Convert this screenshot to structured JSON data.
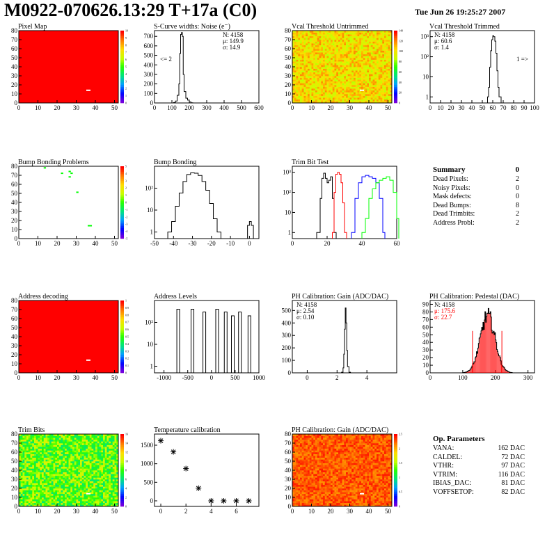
{
  "header": {
    "title": "M0922-070626.13:29 T+17a (C0)",
    "date": "Tue Jun 26 19:25:27 2007"
  },
  "colors": {
    "red": "#ff0000",
    "green": "#00ff00",
    "blue": "#0000ff",
    "marker": "#ffffff"
  },
  "summary": {
    "title": "Summary",
    "value": "0",
    "rows": [
      {
        "label": "Dead Pixels:",
        "value": "2"
      },
      {
        "label": "Noisy Pixels:",
        "value": "0"
      },
      {
        "label": "Mask defects:",
        "value": "0"
      },
      {
        "label": "Dead Bumps:",
        "value": "8"
      },
      {
        "label": "Dead Trimbits:",
        "value": "2"
      },
      {
        "label": "Address Probl:",
        "value": "2"
      }
    ]
  },
  "op_params": {
    "title": "Op. Parameters",
    "rows": [
      {
        "label": "VANA:",
        "value": "162 DAC"
      },
      {
        "label": "CALDEL:",
        "value": "72 DAC"
      },
      {
        "label": "VTHR:",
        "value": "97 DAC"
      },
      {
        "label": "VTRIM:",
        "value": "116 DAC"
      },
      {
        "label": "IBIAS_DAC:",
        "value": "81 DAC"
      },
      {
        "label": "VOFFSETOP:",
        "value": "82 DAC"
      }
    ]
  },
  "chart_data": [
    {
      "id": "pixel-map",
      "type": "heatmap",
      "title": "Pixel Map",
      "xlim": [
        0,
        52
      ],
      "ylim": [
        0,
        80
      ],
      "xticks": [
        0,
        10,
        20,
        30,
        40,
        50
      ],
      "yticks": [
        0,
        10,
        20,
        30,
        40,
        50,
        60,
        70,
        80
      ],
      "ztick_labels": [
        "0",
        "1",
        "2",
        "3",
        "4",
        "5",
        "6",
        "7",
        "8",
        "9",
        "10"
      ],
      "fill": "uniform",
      "fill_value": 10,
      "marked_pixels": [
        [
          36,
          14
        ]
      ]
    },
    {
      "id": "noise",
      "type": "line",
      "title": "S-Curve widths: Noise (e⁻)",
      "xlim": [
        0,
        600
      ],
      "ylim": [
        0,
        760
      ],
      "xticks": [
        0,
        100,
        200,
        300,
        400,
        500,
        600
      ],
      "yticks": [
        0,
        100,
        200,
        300,
        400,
        500,
        600,
        700
      ],
      "stats": [
        "N: 4158",
        "μ: 149.9",
        "σ: 14.9"
      ],
      "overflow_label": "<= 2",
      "x": [
        100,
        110,
        120,
        130,
        140,
        145,
        150,
        155,
        160,
        165,
        170,
        180,
        190,
        200,
        210,
        220
      ],
      "y": [
        0,
        5,
        20,
        80,
        200,
        520,
        720,
        740,
        700,
        300,
        120,
        50,
        30,
        10,
        2,
        0
      ]
    },
    {
      "id": "vcal-untrimmed",
      "type": "heatmap",
      "title": "Vcal Threshold Untrimmed",
      "xlim": [
        0,
        52
      ],
      "ylim": [
        0,
        80
      ],
      "xticks": [
        0,
        10,
        20,
        30,
        40,
        50
      ],
      "yticks": [
        0,
        10,
        20,
        30,
        40,
        50,
        60,
        70,
        80
      ],
      "ztick_labels": [
        "0",
        "20",
        "40",
        "60",
        "80",
        "100",
        "120",
        "140"
      ],
      "fill": "noise",
      "fill_range": [
        85,
        120
      ],
      "marked_pixels": [
        [
          36,
          14
        ]
      ]
    },
    {
      "id": "vcal-trimmed",
      "type": "line",
      "title": "Vcal Threshold Trimmed",
      "xlim": [
        0,
        100
      ],
      "ylim": [
        0.5,
        2000
      ],
      "log_y": true,
      "xticks": [
        0,
        10,
        20,
        30,
        40,
        50,
        60,
        70,
        80,
        90,
        100
      ],
      "yticks": [
        1,
        10,
        100,
        1000
      ],
      "ytick_labels": [
        "1",
        "10",
        "10²",
        "10³"
      ],
      "stats": [
        "N: 4158",
        "μ: 60.6",
        "σ: 1.4"
      ],
      "overflow_label": "1 =>",
      "x": [
        55,
        56,
        57,
        58,
        59,
        60,
        61,
        62,
        63,
        64,
        65,
        66
      ],
      "y": [
        1,
        3,
        30,
        200,
        700,
        1100,
        1000,
        600,
        150,
        20,
        3,
        1
      ]
    },
    {
      "id": "bump-bonding-problems",
      "type": "heatmap",
      "title": "Bump Bonding Problems",
      "xlim": [
        0,
        52
      ],
      "ylim": [
        0,
        80
      ],
      "xticks": [
        0,
        10,
        20,
        30,
        40,
        50
      ],
      "yticks": [
        0,
        10,
        20,
        30,
        40,
        50,
        60,
        70,
        80
      ],
      "ztick_labels": [
        "-5",
        "-4",
        "-3",
        "-2",
        "-1",
        "0",
        "1",
        "2",
        "3",
        "4",
        "5"
      ],
      "fill": "none",
      "green_pixels": [
        [
          13,
          78
        ],
        [
          22,
          72
        ],
        [
          26,
          74
        ],
        [
          27,
          72
        ],
        [
          26,
          68
        ],
        [
          30,
          51
        ],
        [
          36,
          14
        ],
        [
          37,
          14
        ]
      ]
    },
    {
      "id": "bump-bonding",
      "type": "line",
      "title": "Bump Bonding",
      "xlim": [
        -50,
        5
      ],
      "ylim": [
        0.5,
        1000
      ],
      "log_y": true,
      "xticks": [
        -50,
        -40,
        -30,
        -20,
        -10,
        0
      ],
      "yticks": [
        1,
        10,
        100
      ],
      "ytick_labels": [
        "1",
        "10",
        "10²"
      ],
      "x": [
        -43,
        -41,
        -39,
        -37,
        -35,
        -33,
        -31,
        -29,
        -27,
        -25,
        -23,
        -21,
        -19,
        -17,
        -15
      ],
      "y": [
        1,
        3,
        15,
        60,
        200,
        420,
        500,
        480,
        380,
        200,
        80,
        20,
        4,
        1,
        0.5
      ],
      "x2": [
        -1,
        0,
        1
      ],
      "y2": [
        2,
        3,
        2
      ]
    },
    {
      "id": "trim-bit-test",
      "type": "line",
      "title": "Trim Bit Test",
      "xlim": [
        0,
        60
      ],
      "ylim": [
        0.5,
        2000
      ],
      "log_y": true,
      "xticks": [
        0,
        20,
        40,
        60
      ],
      "yticks": [
        1,
        10,
        100,
        1000
      ],
      "ytick_labels": [
        "1",
        "10",
        "10²",
        "10³"
      ],
      "series": [
        {
          "color": "#000000",
          "x": [
            14,
            16,
            17,
            18,
            19,
            20,
            21,
            22,
            23,
            24
          ],
          "y": [
            1,
            50,
            500,
            900,
            500,
            300,
            400,
            600,
            50,
            1
          ]
        },
        {
          "color": "#ff0000",
          "x": [
            23,
            24,
            25,
            26,
            27,
            28,
            29,
            30
          ],
          "y": [
            1,
            100,
            800,
            1000,
            800,
            300,
            30,
            1
          ]
        },
        {
          "color": "#0000ff",
          "x": [
            34,
            36,
            38,
            40,
            42,
            44,
            46,
            48,
            50,
            52
          ],
          "y": [
            1,
            50,
            300,
            600,
            700,
            600,
            500,
            300,
            50,
            1
          ]
        },
        {
          "color": "#00ff00",
          "x": [
            40,
            42,
            44,
            46,
            48,
            50,
            52,
            54,
            56,
            58,
            60
          ],
          "y": [
            1,
            5,
            50,
            150,
            300,
            400,
            500,
            600,
            400,
            100,
            5
          ]
        }
      ]
    },
    {
      "id": "address-decoding",
      "type": "heatmap",
      "title": "Address decoding",
      "xlim": [
        0,
        52
      ],
      "ylim": [
        0,
        80
      ],
      "xticks": [
        0,
        10,
        20,
        30,
        40,
        50
      ],
      "yticks": [
        0,
        10,
        20,
        30,
        40,
        50,
        60,
        70,
        80
      ],
      "ztick_labels": [
        "0",
        "0.1",
        "0.2",
        "0.3",
        "0.4",
        "0.5",
        "0.6",
        "0.7",
        "0.8",
        "0.9",
        "1"
      ],
      "fill": "uniform",
      "fill_value": 1,
      "marked_pixels": [
        [
          36,
          14
        ]
      ]
    },
    {
      "id": "address-levels",
      "type": "line",
      "title": "Address Levels",
      "xlim": [
        -1200,
        1000
      ],
      "ylim": [
        0.5,
        1000
      ],
      "log_y": true,
      "xticks": [
        -1000,
        -500,
        0,
        500,
        1000
      ],
      "yticks": [
        1,
        10,
        100
      ],
      "ytick_labels": [
        "1",
        "10",
        "10²"
      ],
      "peaks": [
        -700,
        -400,
        -150,
        120,
        300,
        450,
        600,
        800
      ],
      "peak_heights": [
        400,
        400,
        300,
        400,
        300,
        200,
        300,
        200
      ]
    },
    {
      "id": "ph-gain",
      "type": "line",
      "title": "PH Calibration: Gain (ADC/DAC)",
      "xlim": [
        -1,
        6
      ],
      "ylim": [
        0,
        580
      ],
      "xticks": [
        0,
        2,
        4
      ],
      "yticks": [
        0,
        100,
        200,
        300,
        400,
        500
      ],
      "stats": [
        "N: 4158",
        "μ: 2.54",
        "σ: 0.10"
      ],
      "x": [
        2.2,
        2.3,
        2.4,
        2.45,
        2.5,
        2.55,
        2.6,
        2.65,
        2.7,
        2.8,
        2.9
      ],
      "y": [
        0,
        5,
        40,
        150,
        350,
        520,
        400,
        180,
        50,
        5,
        0
      ]
    },
    {
      "id": "ph-pedestal",
      "type": "line",
      "title": "PH Calibration: Pedestal (DAC)",
      "xlim": [
        0,
        320
      ],
      "ylim": [
        0,
        95
      ],
      "xticks": [
        0,
        100,
        200,
        300
      ],
      "yticks": [
        0,
        10,
        20,
        30,
        40,
        50,
        60,
        70,
        80,
        90
      ],
      "stats": [
        "N: 4158",
        "μ: 175.6",
        "σ: 22.7"
      ],
      "stat_colors": [
        "#000000",
        "#ff0000",
        "#ff0000"
      ],
      "mu": 175.6,
      "sigma": 22.7,
      "amplitude": 75,
      "markers": [
        130,
        220
      ]
    },
    {
      "id": "trim-bits",
      "type": "heatmap",
      "title": "Trim Bits",
      "xlim": [
        0,
        52
      ],
      "ylim": [
        0,
        80
      ],
      "xticks": [
        0,
        10,
        20,
        30,
        40,
        50
      ],
      "yticks": [
        0,
        10,
        20,
        30,
        40,
        50,
        60,
        70,
        80
      ],
      "ztick_labels": [
        "0",
        "2",
        "4",
        "6",
        "8",
        "10",
        "12",
        "14",
        "16"
      ],
      "fill": "noise",
      "fill_range": [
        6,
        11
      ],
      "marked_pixels": [
        [
          36,
          14
        ]
      ]
    },
    {
      "id": "temperature-calibration",
      "type": "scatter",
      "title": "Temperature calibration",
      "xlim": [
        -0.5,
        7.8
      ],
      "ylim": [
        -150,
        1800
      ],
      "xticks": [
        0,
        2,
        4,
        6
      ],
      "yticks": [
        0,
        500,
        1000,
        1500
      ],
      "x": [
        0,
        1,
        2,
        3,
        4,
        5,
        6,
        7
      ],
      "y": [
        1620,
        1320,
        870,
        340,
        0,
        0,
        0,
        0
      ]
    },
    {
      "id": "ph-gain-map",
      "type": "heatmap",
      "title": "PH Calibration: Gain (ADC/DAC)",
      "xlim": [
        0,
        52
      ],
      "ylim": [
        0,
        80
      ],
      "xticks": [
        0,
        10,
        20,
        30,
        40,
        50
      ],
      "yticks": [
        0,
        10,
        20,
        30,
        40,
        50,
        60,
        70,
        80
      ],
      "ztick_labels": [
        "0",
        "0.5",
        "1",
        "1.5",
        "2",
        "2.5"
      ],
      "fill": "noise",
      "fill_range": [
        2.1,
        2.45
      ],
      "marked_pixels": [
        [
          36,
          14
        ]
      ]
    }
  ]
}
